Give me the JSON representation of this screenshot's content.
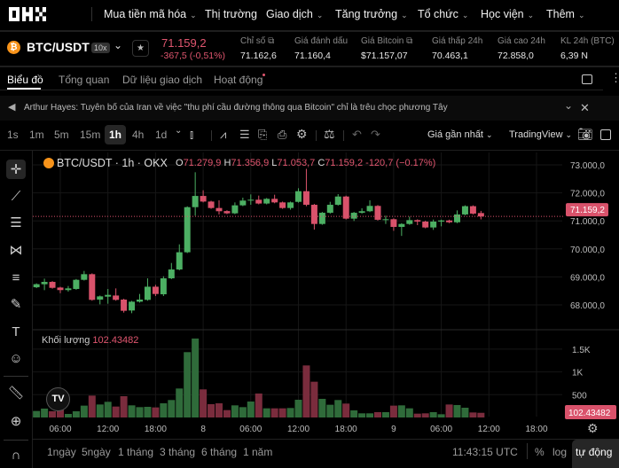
{
  "nav": {
    "logo": "OKX",
    "items": [
      {
        "label": "Mua tiền mã hóa",
        "dropdown": true
      },
      {
        "label": "Thị trường",
        "dropdown": false
      },
      {
        "label": "Giao dịch",
        "dropdown": true
      },
      {
        "label": "Tăng trưởng",
        "dropdown": true
      },
      {
        "label": "Tổ chức",
        "dropdown": true
      },
      {
        "label": "Học viện",
        "dropdown": true
      },
      {
        "label": "Thêm",
        "dropdown": true
      }
    ]
  },
  "ticker": {
    "pair": "BTC/USDT",
    "leverage": "10x",
    "price": "71.159,2",
    "change": "-367,5 (-0,51%)",
    "stats": [
      {
        "label": "Chỉ số",
        "value": "71.162,6",
        "link": true
      },
      {
        "label": "Giá đánh dấu",
        "value": "71.160,4"
      },
      {
        "label": "Giá Bitcoin",
        "value": "$71.157,07",
        "link": true
      },
      {
        "label": "Giá thấp 24h",
        "value": "70.463,1"
      },
      {
        "label": "Giá cao 24h",
        "value": "72.858,0"
      },
      {
        "label": "KL 24h (BTC)",
        "value": "6,39 N"
      }
    ]
  },
  "tabs": [
    {
      "label": "Biểu đồ",
      "active": true
    },
    {
      "label": "Tổng quan"
    },
    {
      "label": "Dữ liệu giao dịch"
    },
    {
      "label": "Hoạt động",
      "dot": true
    }
  ],
  "news": {
    "text": "Arthur Hayes: Tuyên bố của Iran về việc \"thu phí cầu đường thông qua Bitcoin\" chỉ là trêu chọc phương Tây"
  },
  "toolbar": {
    "timeframes": [
      "1s",
      "1m",
      "5m",
      "15m",
      "1h",
      "4h",
      "1d"
    ],
    "active": "1h",
    "price_type": "Giá gần nhất",
    "chart_type": "TradingView"
  },
  "legend": {
    "symbol": "BTC/USDT · 1h · OKX",
    "o_label": "O",
    "o": "71.279,9",
    "h_label": "H",
    "h": "71.356,9",
    "l_label": "L",
    "l": "71.053,7",
    "c_label": "C",
    "c": "71.159,2",
    "chg": "-120,7 (−0.17%)"
  },
  "volume_legend": {
    "label": "Khối lượng",
    "value": "102.43482"
  },
  "bottom": {
    "ranges": [
      "1ngày",
      "5ngày",
      "1 tháng",
      "3 tháng",
      "6 tháng",
      "1 năm"
    ],
    "clock": "11:43:15 UTC",
    "pct": "%",
    "log": "log",
    "auto": "tự động"
  },
  "colors": {
    "up": "#4caf63",
    "down": "#d9526b",
    "bg": "#000000"
  },
  "chart_data": {
    "type": "candlestick",
    "interval": "1h",
    "price_ticks": [
      "73.000,0",
      "72.000,0",
      "71.000,0",
      "70.000,0",
      "69.000,0",
      "68.000,0"
    ],
    "price_tick_values": [
      73000,
      72000,
      71000,
      70000,
      69000,
      68000
    ],
    "last_price_label": "71.159,2",
    "last_price": 71159.2,
    "volume_ticks": [
      "1.5K",
      "1K",
      "500"
    ],
    "volume_tick_values": [
      1500,
      1000,
      500
    ],
    "last_volume_label": "102.43482",
    "time_ticks": [
      {
        "label": "06:00",
        "hour": 3
      },
      {
        "label": "12:00",
        "hour": 9
      },
      {
        "label": "18:00",
        "hour": 15
      },
      {
        "label": "8",
        "hour": 21
      },
      {
        "label": "06:00",
        "hour": 27
      },
      {
        "label": "12:00",
        "hour": 33
      },
      {
        "label": "18:00",
        "hour": 39
      },
      {
        "label": "9",
        "hour": 45
      },
      {
        "label": "06:00",
        "hour": 51
      },
      {
        "label": "12:00",
        "hour": 57
      },
      {
        "label": "18:00",
        "hour": 63
      }
    ],
    "ohlc": [
      [
        68630,
        68770,
        68600,
        68740
      ],
      [
        68738,
        68938,
        68527,
        68822
      ],
      [
        68822,
        68850,
        68580,
        68610
      ],
      [
        68620,
        68650,
        68421,
        68530
      ],
      [
        68530,
        68675,
        68474,
        68590
      ],
      [
        68570,
        68926,
        68540,
        68896
      ],
      [
        68896,
        69213,
        68870,
        69097
      ],
      [
        69097,
        69127,
        68150,
        68180
      ],
      [
        68190,
        68335,
        68020,
        68305
      ],
      [
        68295,
        68569,
        68042,
        68358
      ],
      [
        68335,
        68590,
        68150,
        68180
      ],
      [
        68190,
        68220,
        67725,
        67790
      ],
      [
        67800,
        68145,
        67704,
        68115
      ],
      [
        68115,
        68390,
        68085,
        68190
      ],
      [
        68180,
        68949,
        68150,
        68650
      ],
      [
        68650,
        68717,
        68316,
        68390
      ],
      [
        68380,
        69023,
        68316,
        68950
      ],
      [
        68950,
        69497,
        68920,
        69265
      ],
      [
        69265,
        70162,
        69235,
        69880
      ],
      [
        69880,
        71520,
        69850,
        71490
      ],
      [
        71490,
        72736,
        71186,
        71890
      ],
      [
        71890,
        72093,
        71660,
        71690
      ],
      [
        71690,
        71720,
        71430,
        71460
      ],
      [
        71460,
        71734,
        71228,
        71345
      ],
      [
        71350,
        71380,
        71240,
        71270
      ],
      [
        71270,
        71660,
        71240,
        71555
      ],
      [
        71555,
        71829,
        71525,
        71725
      ],
      [
        71725,
        71945,
        71576,
        71755
      ],
      [
        71755,
        71903,
        71590,
        71620
      ],
      [
        71620,
        71817,
        71590,
        71787
      ],
      [
        71787,
        71935,
        71630,
        71660
      ],
      [
        71660,
        71690,
        71430,
        71460
      ],
      [
        71460,
        71690,
        71400,
        71660
      ],
      [
        71680,
        72167,
        71650,
        72060
      ],
      [
        72060,
        72858,
        71523,
        71575
      ],
      [
        71575,
        71605,
        70690,
        70890
      ],
      [
        70890,
        71320,
        70860,
        71290
      ],
      [
        71290,
        71681,
        71260,
        71575
      ],
      [
        71575,
        71956,
        71545,
        71870
      ],
      [
        71870,
        71900,
        71050,
        71080
      ],
      [
        71080,
        71320,
        70996,
        71290
      ],
      [
        71290,
        71449,
        71260,
        71345
      ],
      [
        71345,
        71734,
        71315,
        71535
      ],
      [
        71535,
        71565,
        71010,
        71040
      ],
      [
        71040,
        71186,
        70890,
        71060
      ],
      [
        71060,
        71090,
        70647,
        70785
      ],
      [
        70785,
        70920,
        70463,
        70890
      ],
      [
        70890,
        71154,
        70860,
        71027
      ],
      [
        71027,
        71057,
        70848,
        70975
      ],
      [
        70975,
        71005,
        70735,
        70765
      ],
      [
        70765,
        71048,
        70679,
        70975
      ],
      [
        70975,
        71045,
        70806,
        71015
      ],
      [
        71015,
        71045,
        70920,
        70950
      ],
      [
        70950,
        71375,
        70920,
        71230
      ],
      [
        71230,
        71555,
        71200,
        71525
      ],
      [
        71525,
        71555,
        71230,
        71260
      ],
      [
        71279.9,
        71356.9,
        71053.7,
        71159.2
      ]
    ],
    "volume": [
      143,
      195,
      136,
      175,
      78,
      136,
      260,
      480,
      285,
      344,
      240,
      467,
      266,
      227,
      234,
      221,
      311,
      383,
      636,
      1434,
      1733,
      617,
      292,
      311,
      162,
      266,
      227,
      350,
      526,
      201,
      201,
      201,
      208,
      389,
      1142,
      785,
      409,
      279,
      383,
      305,
      156,
      91,
      91,
      117,
      117,
      260,
      266,
      201,
      84,
      91,
      117,
      71,
      285,
      273,
      214,
      110,
      102.43
    ]
  }
}
